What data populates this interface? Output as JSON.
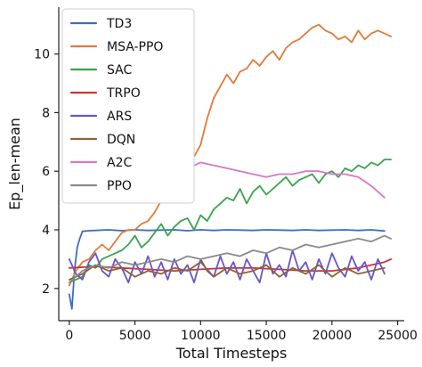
{
  "chart_data": {
    "type": "line",
    "xlabel": "Total Timesteps",
    "ylabel": "Ep_len-mean",
    "xlim": [
      -800,
      25500
    ],
    "ylim": [
      0.9,
      11.6
    ],
    "xticks": [
      0,
      5000,
      10000,
      15000,
      20000,
      25000
    ],
    "yticks": [
      2,
      4,
      6,
      8,
      10
    ],
    "legend_position": "top-left",
    "series": [
      {
        "name": "TD3",
        "color": "#3a6fbf",
        "x": [
          0,
          200,
          400,
          600,
          800,
          1000,
          1500,
          2000,
          3000,
          4000,
          5000,
          6000,
          7000,
          8000,
          9000,
          10000,
          11000,
          12000,
          13000,
          14000,
          15000,
          16000,
          17000,
          18000,
          19000,
          20000,
          21000,
          22000,
          23000,
          24000
        ],
        "y": [
          1.8,
          1.3,
          2.6,
          3.4,
          3.7,
          3.95,
          3.97,
          3.98,
          4.0,
          3.97,
          4.0,
          3.98,
          3.99,
          4.0,
          3.97,
          4.0,
          3.98,
          4.0,
          3.99,
          3.98,
          4.0,
          3.99,
          3.98,
          4.0,
          3.98,
          3.99,
          4.0,
          3.98,
          4.0,
          3.96
        ]
      },
      {
        "name": "MSA-PPO",
        "color": "#e07b39",
        "x": [
          0,
          500,
          1000,
          1500,
          2000,
          2500,
          3000,
          3500,
          4000,
          4500,
          5000,
          5500,
          6000,
          6500,
          7000,
          7500,
          8000,
          8500,
          9000,
          9500,
          10000,
          10500,
          11000,
          11500,
          12000,
          12500,
          13000,
          13500,
          14000,
          14500,
          15000,
          15500,
          16000,
          16500,
          17000,
          17500,
          18000,
          18500,
          19000,
          19500,
          20000,
          20500,
          21000,
          21500,
          22000,
          22500,
          23000,
          23500,
          24000,
          24500
        ],
        "y": [
          2.1,
          2.6,
          2.9,
          3.0,
          3.3,
          3.5,
          3.3,
          3.6,
          3.9,
          4.0,
          4.0,
          4.2,
          4.3,
          4.6,
          5.0,
          5.5,
          5.8,
          6.3,
          6.8,
          6.5,
          6.9,
          7.8,
          8.5,
          8.9,
          9.3,
          9.0,
          9.4,
          9.5,
          9.8,
          9.6,
          9.9,
          10.1,
          9.8,
          10.2,
          10.4,
          10.5,
          10.7,
          10.9,
          11.0,
          10.8,
          10.7,
          10.5,
          10.6,
          10.4,
          10.8,
          10.5,
          10.7,
          10.8,
          10.7,
          10.6
        ]
      },
      {
        "name": "SAC",
        "color": "#3aa34d",
        "x": [
          0,
          500,
          1000,
          1500,
          2000,
          2500,
          3000,
          3500,
          4000,
          4500,
          5000,
          5500,
          6000,
          6500,
          7000,
          7500,
          8000,
          8500,
          9000,
          9500,
          10000,
          10500,
          11000,
          11500,
          12000,
          12500,
          13000,
          13500,
          14000,
          14500,
          15000,
          15500,
          16000,
          16500,
          17000,
          17500,
          18000,
          18500,
          19000,
          19500,
          20000,
          20500,
          21000,
          21500,
          22000,
          22500,
          23000,
          23500,
          24000,
          24500
        ],
        "y": [
          2.2,
          2.3,
          2.4,
          2.8,
          2.7,
          3.0,
          3.1,
          3.2,
          3.3,
          3.5,
          3.8,
          3.4,
          3.6,
          3.9,
          4.2,
          3.8,
          4.1,
          4.3,
          4.4,
          4.0,
          4.5,
          4.3,
          4.7,
          4.9,
          5.1,
          5.0,
          5.4,
          4.9,
          5.3,
          5.5,
          5.2,
          5.4,
          5.6,
          5.8,
          5.5,
          5.7,
          5.8,
          5.9,
          5.6,
          5.9,
          6.0,
          5.8,
          6.1,
          6.0,
          6.2,
          6.1,
          6.3,
          6.2,
          6.4,
          6.4
        ]
      },
      {
        "name": "TRPO",
        "color": "#c93535",
        "x": [
          0,
          2000,
          4000,
          6000,
          8000,
          10000,
          12000,
          14000,
          16000,
          18000,
          20000,
          22000,
          24000,
          24500
        ],
        "y": [
          2.7,
          2.75,
          2.7,
          2.65,
          2.6,
          2.65,
          2.7,
          2.7,
          2.65,
          2.6,
          2.6,
          2.7,
          2.9,
          3.0
        ]
      },
      {
        "name": "ARS",
        "color": "#6a55c8",
        "x": [
          0,
          500,
          1000,
          1500,
          2000,
          2500,
          3000,
          3500,
          4000,
          4500,
          5000,
          5500,
          6000,
          6500,
          7000,
          7500,
          8000,
          8500,
          9000,
          9500,
          10000,
          10500,
          11000,
          11500,
          12000,
          12500,
          13000,
          13500,
          14000,
          14500,
          15000,
          15500,
          16000,
          16500,
          17000,
          17500,
          18000,
          18500,
          19000,
          19500,
          20000,
          20500,
          21000,
          21500,
          22000,
          22500,
          23000,
          23500,
          24000
        ],
        "y": [
          3.0,
          2.5,
          2.3,
          2.9,
          3.2,
          2.6,
          2.4,
          3.0,
          2.7,
          2.2,
          2.9,
          2.5,
          3.1,
          2.4,
          2.9,
          2.3,
          3.0,
          2.5,
          2.8,
          2.2,
          3.0,
          2.6,
          2.4,
          3.1,
          2.5,
          2.9,
          2.3,
          3.0,
          2.6,
          2.2,
          3.2,
          2.5,
          2.8,
          2.4,
          3.3,
          2.6,
          2.9,
          2.3,
          3.0,
          2.5,
          3.2,
          2.7,
          2.4,
          3.1,
          2.6,
          2.9,
          2.3,
          3.0,
          2.5
        ]
      },
      {
        "name": "DQN",
        "color": "#8c6239",
        "x": [
          0,
          1000,
          2000,
          3000,
          4000,
          5000,
          6000,
          7000,
          8000,
          9000,
          10000,
          11000,
          12000,
          13000,
          14000,
          15000,
          16000,
          17000,
          18000,
          19000,
          20000,
          21000,
          22000,
          23000,
          24000
        ],
        "y": [
          2.3,
          2.5,
          2.8,
          2.6,
          2.7,
          2.4,
          2.6,
          2.5,
          2.7,
          2.6,
          2.9,
          2.4,
          2.7,
          2.5,
          2.6,
          2.8,
          2.4,
          2.7,
          2.5,
          2.8,
          2.4,
          2.7,
          2.5,
          2.6,
          2.7
        ]
      },
      {
        "name": "A2C",
        "color": "#d877c6",
        "x": [
          5000,
          6000,
          7000,
          8000,
          9000,
          10000,
          11000,
          12000,
          13000,
          14000,
          15000,
          16000,
          17000,
          18000,
          19000,
          20000,
          21000,
          22000,
          23000,
          24000
        ],
        "y": [
          5.5,
          5.5,
          5.6,
          5.8,
          6.1,
          6.3,
          6.2,
          6.1,
          6.0,
          5.9,
          5.8,
          5.9,
          5.9,
          6.0,
          6.0,
          5.9,
          5.9,
          5.8,
          5.5,
          5.1
        ]
      },
      {
        "name": "PPO",
        "color": "#8a8a8a",
        "x": [
          0,
          1000,
          2000,
          3000,
          4000,
          5000,
          6000,
          7000,
          8000,
          9000,
          10000,
          11000,
          12000,
          13000,
          14000,
          15000,
          16000,
          17000,
          18000,
          19000,
          20000,
          21000,
          22000,
          23000,
          24000,
          24500
        ],
        "y": [
          2.2,
          2.6,
          2.8,
          2.7,
          2.9,
          2.8,
          2.9,
          3.0,
          2.9,
          3.1,
          3.0,
          3.1,
          3.2,
          3.1,
          3.3,
          3.2,
          3.4,
          3.3,
          3.5,
          3.4,
          3.5,
          3.6,
          3.7,
          3.6,
          3.8,
          3.7
        ]
      }
    ]
  }
}
